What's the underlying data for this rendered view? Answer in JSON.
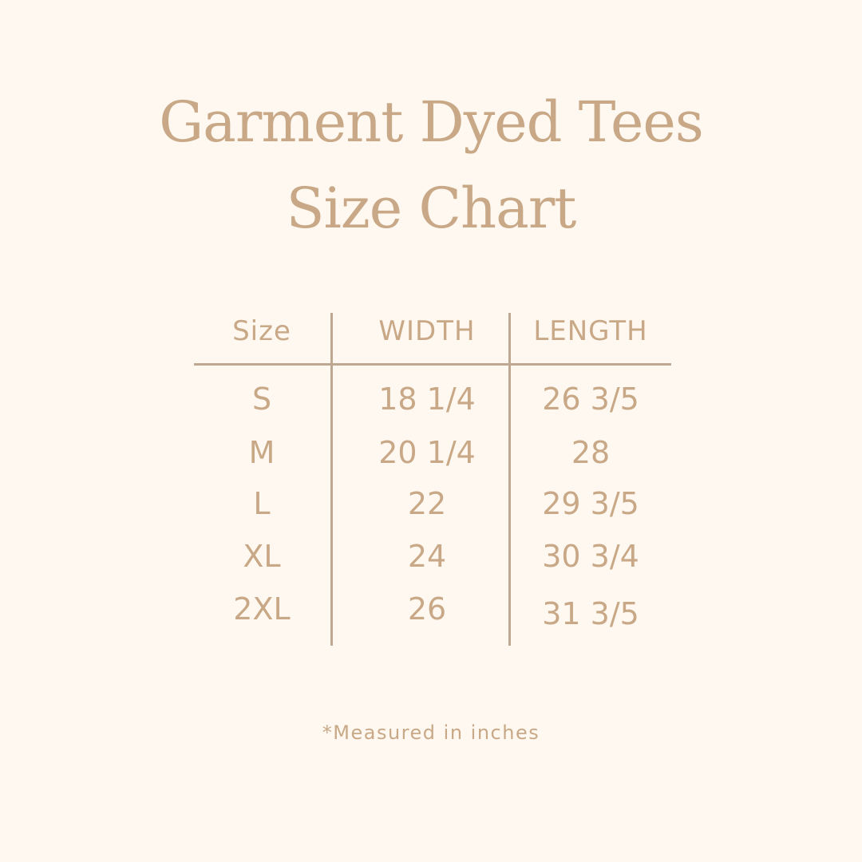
{
  "title_line1": "Garment Dyed Tees",
  "title_line2": "Size Chart",
  "table": {
    "headers": [
      "Size",
      "WIDTH",
      "LENGTH"
    ],
    "rows": [
      [
        "S",
        "18 1/4",
        "26 3/5"
      ],
      [
        "M",
        "20 1/4",
        "28"
      ],
      [
        "L",
        "22",
        "29 3/5"
      ],
      [
        "XL",
        "24",
        "30 3/4"
      ],
      [
        "2XL",
        "26",
        "31 3/5"
      ]
    ]
  },
  "footnote": "*Measured in inches",
  "colors": {
    "background": "#fef8f0",
    "text": "#c8a886",
    "rules": "#bea892"
  }
}
